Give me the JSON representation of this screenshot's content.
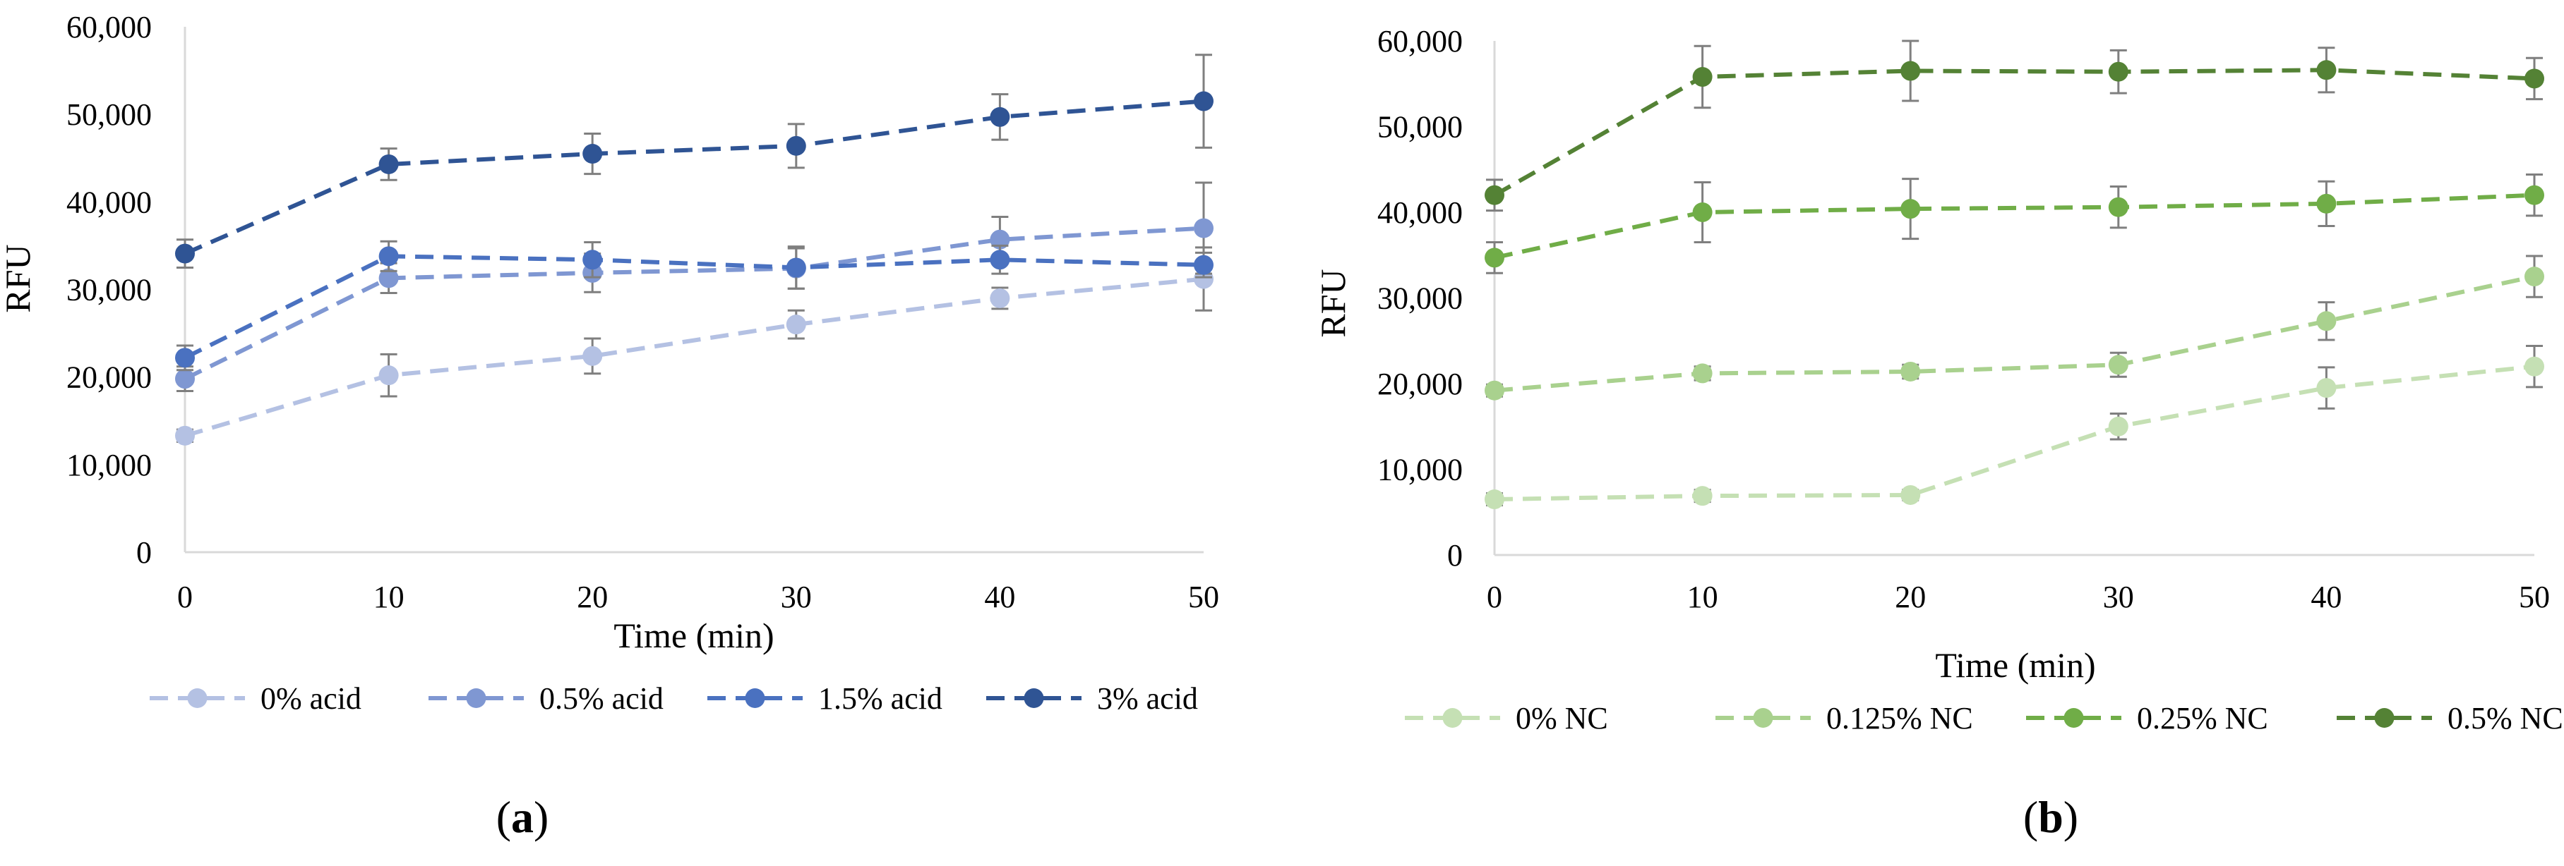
{
  "chart_data": [
    {
      "type": "line",
      "panel_label": "a",
      "title": "",
      "xlabel": "Time (min)",
      "ylabel": "",
      "x": [
        0,
        10,
        20,
        30,
        40,
        50
      ],
      "x_tick_labels": [
        "0",
        "10",
        "20",
        "30",
        "40",
        "50"
      ],
      "ylim": [
        0,
        60000
      ],
      "y_tick_labels": [
        "0",
        "10,000",
        "20,000",
        "30,000",
        "40,000",
        "50,000",
        "60,000"
      ],
      "legend_position": "bottom",
      "grid": false,
      "series": [
        {
          "name": "0% acid",
          "color": "#b4c1e3",
          "values": [
            13300,
            20200,
            22400,
            26000,
            29000,
            31200
          ],
          "errors": [
            700,
            2400,
            2000,
            1600,
            1200,
            3600
          ]
        },
        {
          "name": "0.5% acid",
          "color": "#7f97d2",
          "values": [
            19800,
            31300,
            31900,
            32400,
            35700,
            37000
          ],
          "errors": [
            1400,
            1700,
            2200,
            2300,
            2600,
            5200
          ]
        },
        {
          "name": "1.5% acid",
          "color": "#4a71c0",
          "values": [
            22200,
            33800,
            33400,
            32500,
            33400,
            32800
          ],
          "errors": [
            1400,
            1700,
            2000,
            2400,
            1600,
            1400
          ]
        },
        {
          "name": "3% acid",
          "color": "#2f5494",
          "values": [
            34100,
            44300,
            45500,
            46400,
            49700,
            51500
          ],
          "errors": [
            1600,
            1800,
            2300,
            2500,
            2600,
            5300
          ]
        }
      ]
    },
    {
      "type": "line",
      "panel_label": "b",
      "title": "",
      "xlabel": "Time (min)",
      "ylabel": "RFU",
      "x": [
        0,
        10,
        20,
        30,
        40,
        50
      ],
      "x_tick_labels": [
        "0",
        "10",
        "20",
        "30",
        "40",
        "50"
      ],
      "ylim": [
        0,
        60000
      ],
      "y_tick_labels": [
        "0",
        "10,000",
        "20,000",
        "30,000",
        "40,000",
        "50,000",
        "60,000"
      ],
      "legend_position": "bottom",
      "grid": false,
      "series": [
        {
          "name": "0% NC",
          "color": "#c5e0b4",
          "values": [
            6500,
            6900,
            7000,
            15000,
            19500,
            22000
          ],
          "errors": [
            700,
            700,
            600,
            1500,
            2400,
            2400
          ]
        },
        {
          "name": "0.125% NC",
          "color": "#a9d18e",
          "values": [
            19200,
            21200,
            21400,
            22200,
            27300,
            32500
          ],
          "errors": [
            700,
            800,
            800,
            1400,
            2200,
            2400
          ]
        },
        {
          "name": "0.25% NC",
          "color": "#70ad47",
          "values": [
            34700,
            40000,
            40400,
            40600,
            41000,
            42000
          ],
          "errors": [
            1800,
            3500,
            3500,
            2400,
            2600,
            2400
          ]
        },
        {
          "name": "0.5% NC",
          "color": "#548235",
          "values": [
            42000,
            55800,
            56500,
            56400,
            56600,
            55600
          ],
          "errors": [
            1800,
            3600,
            3500,
            2500,
            2600,
            2400
          ]
        }
      ]
    }
  ],
  "panel_a_ylabel": "RFU"
}
